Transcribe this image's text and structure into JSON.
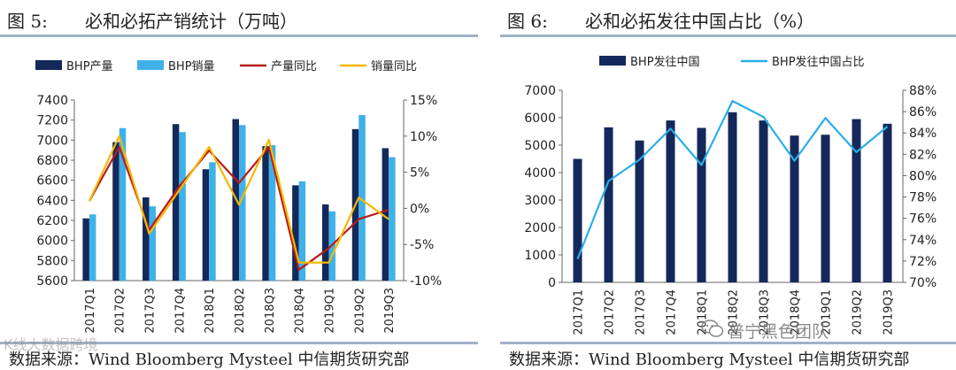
{
  "figures": [
    {
      "fig_label": "图 5:",
      "title": "必和必拓产销统计（万吨）",
      "source": "数据来源：Wind Bloomberg Mysteel 中信期货研究部"
    },
    {
      "fig_label": "图 6:",
      "title": "必和必拓发往中国占比（%）",
      "source": "数据来源：Wind Bloomberg Mysteel 中信期货研究部"
    }
  ],
  "watermark": "普宁黑色团队",
  "corner_watermark": "K线大数据跨境",
  "chart_data": [
    {
      "type": "bar",
      "categories": [
        "2017Q1",
        "2017Q2",
        "2017Q3",
        "2017Q4",
        "2018Q1",
        "2018Q2",
        "2018Q3",
        "2018Q4",
        "2019Q1",
        "2019Q2",
        "2019Q3"
      ],
      "series": [
        {
          "name": "BHP产量",
          "kind": "bar",
          "axis": "left",
          "color": "#14285a",
          "values": [
            6220,
            6980,
            6430,
            7160,
            6710,
            7210,
            6940,
            6550,
            6360,
            7110,
            6920
          ]
        },
        {
          "name": "BHP销量",
          "kind": "bar",
          "axis": "left",
          "color": "#3fb1e8",
          "values": [
            6260,
            7120,
            6340,
            7080,
            6780,
            7150,
            6950,
            6590,
            6290,
            7250,
            6830
          ]
        },
        {
          "name": "产量同比",
          "kind": "line",
          "axis": "right",
          "color": "#b71c1c",
          "values": [
            1.0,
            8.5,
            -3.0,
            3.0,
            8.0,
            3.5,
            8.5,
            -8.5,
            -5.5,
            -1.5,
            -0.2
          ]
        },
        {
          "name": "销量同比",
          "kind": "line",
          "axis": "right",
          "color": "#f5b800",
          "values": [
            1.0,
            10.0,
            -3.5,
            2.5,
            8.5,
            0.5,
            9.5,
            -7.5,
            -7.5,
            1.5,
            -1.5
          ]
        }
      ],
      "ylim_left": [
        5600,
        7400
      ],
      "yticks_left": [
        "5600",
        "5800",
        "6000",
        "6200",
        "6400",
        "6600",
        "6800",
        "7000",
        "7200",
        "7400"
      ],
      "ylim_right": [
        -10,
        15
      ],
      "yticks_right": [
        "-10%",
        "-5%",
        "0%",
        "5%",
        "10%",
        "15%"
      ],
      "legend": "top"
    },
    {
      "type": "bar",
      "categories": [
        "2017Q1",
        "2017Q2",
        "2017Q3",
        "2017Q4",
        "2018Q1",
        "2018Q2",
        "2018Q3",
        "2018Q4",
        "2019Q1",
        "2019Q2",
        "2019Q3"
      ],
      "series": [
        {
          "name": "BHP发往中国",
          "kind": "bar",
          "axis": "left",
          "color": "#14285a",
          "values": [
            4500,
            5650,
            5170,
            5900,
            5630,
            6200,
            5900,
            5350,
            5380,
            5950,
            5780
          ]
        },
        {
          "name": "BHP发往中国占比",
          "kind": "line",
          "axis": "right",
          "color": "#2aaee8",
          "values": [
            72.2,
            79.5,
            81.5,
            84.4,
            81.0,
            87.0,
            85.5,
            81.4,
            85.4,
            82.2,
            84.6
          ]
        }
      ],
      "ylim_left": [
        0,
        7000
      ],
      "yticks_left": [
        "0",
        "1000",
        "2000",
        "3000",
        "4000",
        "5000",
        "6000",
        "7000"
      ],
      "ylim_right": [
        70,
        88
      ],
      "yticks_right": [
        "70%",
        "72%",
        "74%",
        "76%",
        "78%",
        "80%",
        "82%",
        "84%",
        "86%",
        "88%"
      ],
      "legend": "top"
    }
  ]
}
